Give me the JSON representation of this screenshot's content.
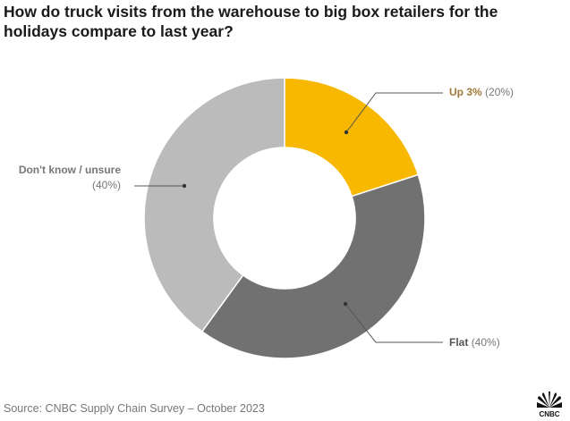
{
  "title": "How do truck visits from the warehouse to big box retailers for the holidays compare to last year?",
  "source": "Source: CNBC Supply Chain Survey – October 2023",
  "logo": "CNBC",
  "chart_data": {
    "type": "pie",
    "donut": true,
    "start": "top, clockwise",
    "slices": [
      {
        "label": "Up 3%",
        "pct_label": "(20%)",
        "value": 20,
        "color": "#F8B800",
        "label_color": "#A07A3A"
      },
      {
        "label": "Flat",
        "pct_label": "(40%)",
        "value": 40,
        "color": "#717171",
        "label_color": "#555555"
      },
      {
        "label": "Don't know / unsure",
        "pct_label": "(40%)",
        "value": 40,
        "color": "#BBBBBB",
        "label_color": "#777777"
      }
    ]
  }
}
